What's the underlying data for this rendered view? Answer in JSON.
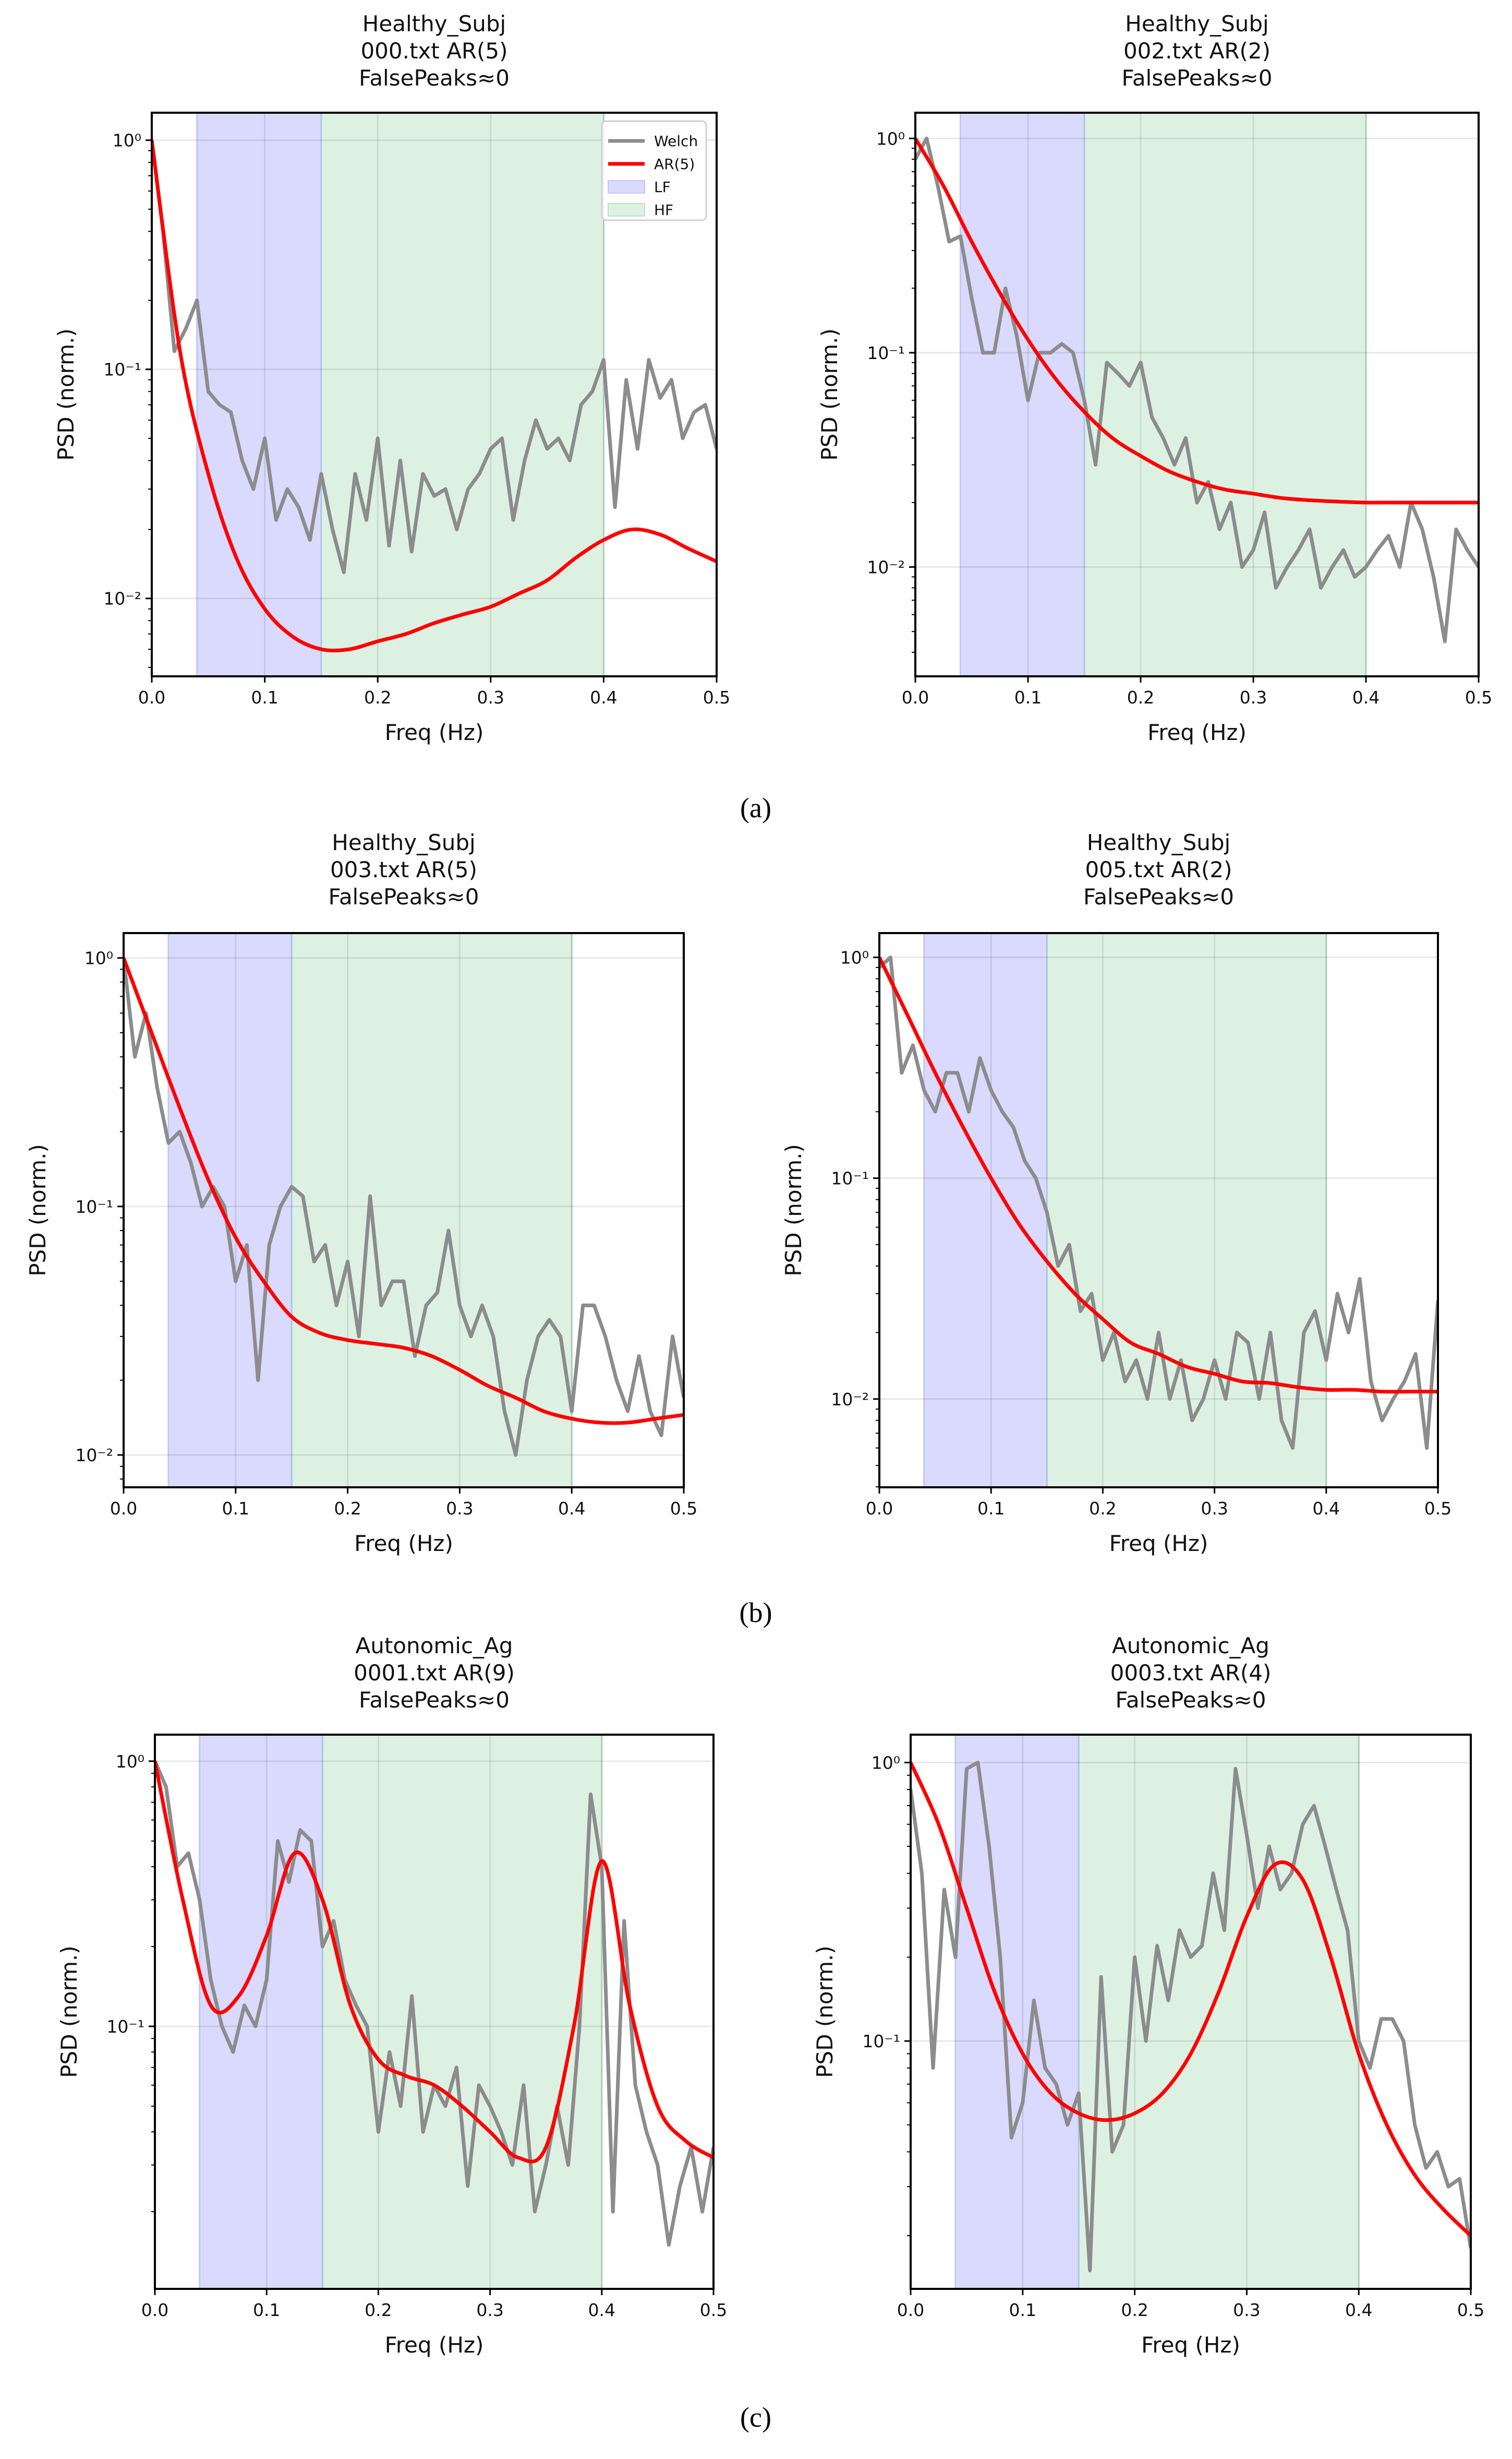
{
  "captions": [
    "(a)",
    "(b)",
    "(c)"
  ],
  "colors": {
    "welch": "#8c8c8c",
    "ar": "#ff0000",
    "lf": "#d9dafd",
    "hf": "#ddf1e2",
    "grid": "#e6e6e6"
  },
  "chart_data": [
    {
      "type": "line",
      "title": [
        "Healthy_Subj",
        "000.txt AR(5)",
        "FalsePeaks≈0"
      ],
      "xlabel": "Freq (Hz)",
      "ylabel": "PSD (norm.)",
      "yscale": "log",
      "xlim": [
        0,
        0.5
      ],
      "xticks": [
        "0.0",
        "0.1",
        "0.2",
        "0.3",
        "0.4",
        "0.5"
      ],
      "yticks": [
        1,
        0.1,
        0.01
      ],
      "ytick_labels": [
        "10⁰",
        "10⁻¹",
        "10⁻²"
      ],
      "bands": {
        "LF": [
          0.04,
          0.15
        ],
        "HF": [
          0.15,
          0.4
        ]
      },
      "legend": {
        "placement": "top-right",
        "entries": [
          "Welch",
          "AR(5)",
          "LF",
          "HF"
        ]
      },
      "series": [
        {
          "name": "Welch",
          "x_step": 0.01,
          "values": [
            1.0,
            0.4,
            0.12,
            0.15,
            0.2,
            0.08,
            0.07,
            0.065,
            0.04,
            0.03,
            0.05,
            0.022,
            0.03,
            0.025,
            0.018,
            0.035,
            0.02,
            0.013,
            0.035,
            0.022,
            0.05,
            0.017,
            0.04,
            0.016,
            0.035,
            0.028,
            0.03,
            0.02,
            0.03,
            0.035,
            0.045,
            0.05,
            0.022,
            0.04,
            0.06,
            0.045,
            0.05,
            0.04,
            0.07,
            0.08,
            0.11,
            0.025,
            0.09,
            0.045,
            0.11,
            0.075,
            0.09,
            0.05,
            0.065,
            0.07,
            0.045
          ]
        },
        {
          "name": "AR(5)",
          "x_step": 0.025,
          "values": [
            1.0,
            0.12,
            0.035,
            0.015,
            0.009,
            0.0068,
            0.006,
            0.006,
            0.0065,
            0.007,
            0.0078,
            0.0085,
            0.0092,
            0.0105,
            0.012,
            0.015,
            0.018,
            0.02,
            0.019,
            0.0165,
            0.0145
          ]
        }
      ]
    },
    {
      "type": "line",
      "title": [
        "Healthy_Subj",
        "002.txt AR(2)",
        "FalsePeaks≈0"
      ],
      "xlabel": "Freq (Hz)",
      "ylabel": "PSD (norm.)",
      "yscale": "log",
      "xlim": [
        0,
        0.5
      ],
      "xticks": [
        "0.0",
        "0.1",
        "0.2",
        "0.3",
        "0.4",
        "0.5"
      ],
      "yticks": [
        1,
        0.1,
        0.01
      ],
      "ytick_labels": [
        "10⁰",
        "10⁻¹",
        "10⁻²"
      ],
      "bands": {
        "LF": [
          0.04,
          0.15
        ],
        "HF": [
          0.15,
          0.4
        ]
      },
      "series": [
        {
          "name": "Welch",
          "x_step": 0.01,
          "values": [
            0.8,
            1.0,
            0.6,
            0.33,
            0.35,
            0.18,
            0.1,
            0.1,
            0.2,
            0.12,
            0.06,
            0.1,
            0.1,
            0.11,
            0.1,
            0.06,
            0.03,
            0.09,
            0.08,
            0.07,
            0.09,
            0.05,
            0.04,
            0.03,
            0.04,
            0.02,
            0.025,
            0.015,
            0.02,
            0.01,
            0.012,
            0.018,
            0.008,
            0.01,
            0.012,
            0.015,
            0.008,
            0.01,
            0.012,
            0.009,
            0.01,
            0.012,
            0.014,
            0.01,
            0.02,
            0.015,
            0.009,
            0.0045,
            0.015,
            0.012,
            0.01
          ]
        },
        {
          "name": "AR(2)",
          "x_step": 0.025,
          "values": [
            1.0,
            0.6,
            0.33,
            0.19,
            0.115,
            0.075,
            0.053,
            0.04,
            0.033,
            0.028,
            0.025,
            0.023,
            0.022,
            0.021,
            0.0205,
            0.0202,
            0.02,
            0.02,
            0.02,
            0.02,
            0.02
          ]
        }
      ]
    },
    {
      "type": "line",
      "title": [
        "Healthy_Subj",
        "003.txt AR(5)",
        "FalsePeaks≈0"
      ],
      "xlabel": "Freq (Hz)",
      "ylabel": "PSD (norm.)",
      "yscale": "log",
      "xlim": [
        0,
        0.5
      ],
      "xticks": [
        "0.0",
        "0.1",
        "0.2",
        "0.3",
        "0.4",
        "0.5"
      ],
      "yticks": [
        1,
        0.1,
        0.01
      ],
      "ytick_labels": [
        "10⁰",
        "10⁻¹",
        "10⁻²"
      ],
      "bands": {
        "LF": [
          0.04,
          0.15
        ],
        "HF": [
          0.15,
          0.4
        ]
      },
      "series": [
        {
          "name": "Welch",
          "x_step": 0.01,
          "values": [
            1.0,
            0.4,
            0.6,
            0.3,
            0.18,
            0.2,
            0.15,
            0.1,
            0.12,
            0.1,
            0.05,
            0.07,
            0.02,
            0.07,
            0.1,
            0.12,
            0.11,
            0.06,
            0.07,
            0.04,
            0.06,
            0.03,
            0.11,
            0.04,
            0.05,
            0.05,
            0.025,
            0.04,
            0.045,
            0.08,
            0.04,
            0.03,
            0.04,
            0.03,
            0.015,
            0.01,
            0.02,
            0.03,
            0.035,
            0.03,
            0.015,
            0.04,
            0.04,
            0.03,
            0.02,
            0.015,
            0.025,
            0.015,
            0.012,
            0.03,
            0.017
          ]
        },
        {
          "name": "AR(5)",
          "x_step": 0.025,
          "values": [
            1.0,
            0.5,
            0.25,
            0.13,
            0.075,
            0.05,
            0.036,
            0.031,
            0.029,
            0.028,
            0.027,
            0.025,
            0.022,
            0.019,
            0.017,
            0.015,
            0.014,
            0.0135,
            0.0135,
            0.014,
            0.0145
          ]
        }
      ]
    },
    {
      "type": "line",
      "title": [
        "Healthy_Subj",
        "005.txt AR(2)",
        "FalsePeaks≈0"
      ],
      "xlabel": "Freq (Hz)",
      "ylabel": "PSD (norm.)",
      "yscale": "log",
      "xlim": [
        0,
        0.5
      ],
      "xticks": [
        "0.0",
        "0.1",
        "0.2",
        "0.3",
        "0.4",
        "0.5"
      ],
      "yticks": [
        1,
        0.1,
        0.01
      ],
      "ytick_labels": [
        "10⁰",
        "10⁻¹",
        "10⁻²"
      ],
      "bands": {
        "LF": [
          0.04,
          0.15
        ],
        "HF": [
          0.15,
          0.4
        ]
      },
      "series": [
        {
          "name": "Welch",
          "x_step": 0.01,
          "values": [
            0.9,
            1.0,
            0.3,
            0.4,
            0.25,
            0.2,
            0.3,
            0.3,
            0.2,
            0.35,
            0.25,
            0.2,
            0.17,
            0.12,
            0.1,
            0.07,
            0.04,
            0.05,
            0.025,
            0.03,
            0.015,
            0.02,
            0.012,
            0.015,
            0.01,
            0.02,
            0.01,
            0.015,
            0.008,
            0.01,
            0.015,
            0.01,
            0.02,
            0.018,
            0.01,
            0.02,
            0.008,
            0.006,
            0.02,
            0.025,
            0.015,
            0.03,
            0.02,
            0.035,
            0.012,
            0.008,
            0.01,
            0.012,
            0.016,
            0.006,
            0.028
          ]
        },
        {
          "name": "AR(2)",
          "x_step": 0.025,
          "values": [
            1.0,
            0.55,
            0.3,
            0.17,
            0.1,
            0.062,
            0.042,
            0.03,
            0.023,
            0.018,
            0.016,
            0.014,
            0.013,
            0.012,
            0.0118,
            0.0113,
            0.011,
            0.011,
            0.0108,
            0.0108,
            0.0108
          ]
        }
      ]
    },
    {
      "type": "line",
      "title": [
        "Autonomic_Ag",
        "0001.txt AR(9)",
        "FalsePeaks≈0"
      ],
      "xlabel": "Freq (Hz)",
      "ylabel": "PSD (norm.)",
      "yscale": "log",
      "xlim": [
        0,
        0.5
      ],
      "xticks": [
        "0.0",
        "0.1",
        "0.2",
        "0.3",
        "0.4",
        "0.5"
      ],
      "yticks": [
        1,
        0.1
      ],
      "ytick_labels": [
        "10⁰",
        "10⁻¹"
      ],
      "bands": {
        "LF": [
          0.04,
          0.15
        ],
        "HF": [
          0.15,
          0.4
        ]
      },
      "series": [
        {
          "name": "Welch",
          "x_step": 0.01,
          "values": [
            1.0,
            0.8,
            0.4,
            0.45,
            0.3,
            0.15,
            0.1,
            0.08,
            0.12,
            0.1,
            0.15,
            0.5,
            0.35,
            0.55,
            0.5,
            0.2,
            0.25,
            0.15,
            0.12,
            0.1,
            0.04,
            0.08,
            0.05,
            0.13,
            0.04,
            0.06,
            0.05,
            0.07,
            0.025,
            0.06,
            0.05,
            0.04,
            0.03,
            0.06,
            0.02,
            0.03,
            0.05,
            0.03,
            0.1,
            0.75,
            0.4,
            0.02,
            0.25,
            0.06,
            0.04,
            0.03,
            0.015,
            0.025,
            0.035,
            0.02,
            0.035
          ]
        },
        {
          "name": "AR(9)",
          "x_step": 0.025,
          "values": [
            1.0,
            0.3,
            0.12,
            0.13,
            0.22,
            0.45,
            0.3,
            0.12,
            0.075,
            0.065,
            0.06,
            0.05,
            0.04,
            0.032,
            0.035,
            0.1,
            0.42,
            0.12,
            0.05,
            0.037,
            0.032
          ]
        }
      ]
    },
    {
      "type": "line",
      "title": [
        "Autonomic_Ag",
        "0003.txt AR(4)",
        "FalsePeaks≈0"
      ],
      "xlabel": "Freq (Hz)",
      "ylabel": "PSD (norm.)",
      "yscale": "log",
      "xlim": [
        0,
        0.5
      ],
      "xticks": [
        "0.0",
        "0.1",
        "0.2",
        "0.3",
        "0.4",
        "0.5"
      ],
      "yticks": [
        1,
        0.1
      ],
      "ytick_labels": [
        "10⁰",
        "10⁻¹"
      ],
      "bands": {
        "LF": [
          0.04,
          0.15
        ],
        "HF": [
          0.15,
          0.4
        ]
      },
      "series": [
        {
          "name": "Welch",
          "x_step": 0.01,
          "values": [
            0.8,
            0.4,
            0.08,
            0.35,
            0.2,
            0.95,
            1.0,
            0.5,
            0.2,
            0.045,
            0.06,
            0.14,
            0.08,
            0.07,
            0.05,
            0.065,
            0.015,
            0.17,
            0.04,
            0.05,
            0.2,
            0.1,
            0.22,
            0.14,
            0.25,
            0.2,
            0.22,
            0.4,
            0.25,
            0.95,
            0.55,
            0.3,
            0.5,
            0.35,
            0.4,
            0.6,
            0.7,
            0.5,
            0.35,
            0.25,
            0.1,
            0.08,
            0.12,
            0.12,
            0.1,
            0.05,
            0.035,
            0.04,
            0.03,
            0.032,
            0.018
          ]
        },
        {
          "name": "AR(4)",
          "x_step": 0.025,
          "values": [
            1.0,
            0.6,
            0.3,
            0.15,
            0.09,
            0.065,
            0.055,
            0.052,
            0.055,
            0.065,
            0.09,
            0.15,
            0.28,
            0.43,
            0.38,
            0.2,
            0.09,
            0.05,
            0.033,
            0.025,
            0.02
          ]
        }
      ]
    }
  ]
}
